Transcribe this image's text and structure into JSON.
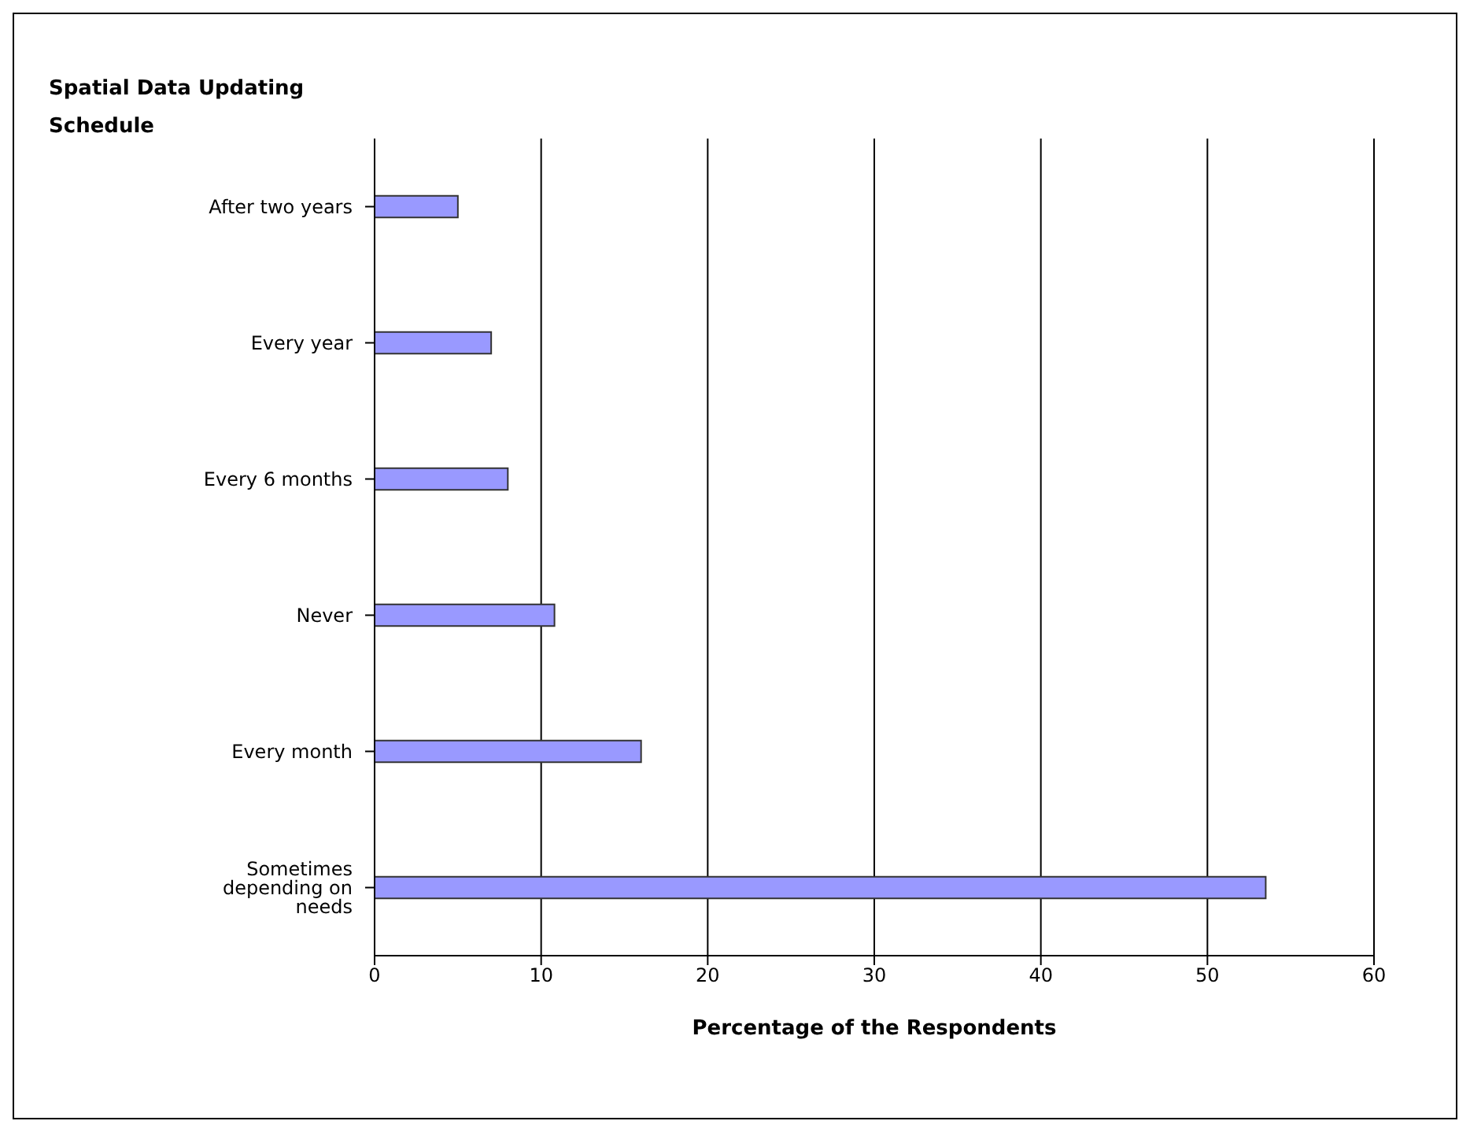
{
  "chart_data": {
    "type": "bar",
    "orientation": "horizontal",
    "title": "Spatial Data Updating Schedule",
    "xlabel": "Percentage of the Respondents",
    "categories": [
      "After two years",
      "Every year",
      "Every 6 months",
      "Never",
      "Every month",
      "Sometimes depending on needs"
    ],
    "values": [
      5,
      7,
      8,
      10.8,
      16,
      53.5
    ],
    "color": "#9999ff",
    "xlim": [
      0,
      60
    ],
    "xticks": [
      0,
      10,
      20,
      30,
      40,
      50,
      60
    ],
    "grid": "x"
  }
}
